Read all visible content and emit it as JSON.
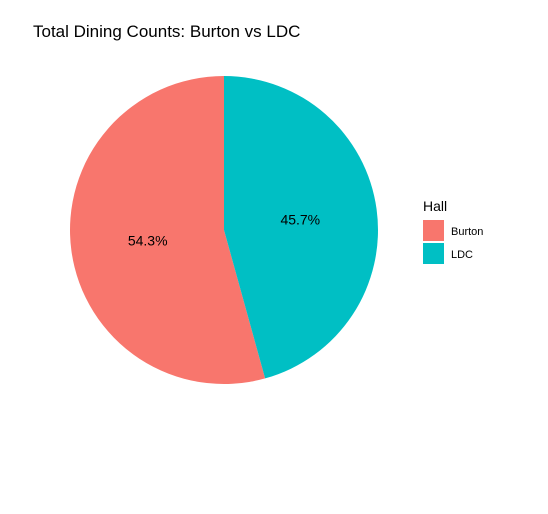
{
  "chart_data": {
    "type": "pie",
    "title": "Total Dining Counts: Burton vs LDC",
    "legend_title": "Hall",
    "legend_position": "right",
    "start_angle": "12 o'clock",
    "direction": "counterclockwise",
    "categories": [
      "Burton",
      "LDC"
    ],
    "values": [
      54.3,
      45.7
    ],
    "labels": [
      "54.3%",
      "45.7%"
    ],
    "colors": [
      "#F8766D",
      "#00BFC4"
    ]
  }
}
